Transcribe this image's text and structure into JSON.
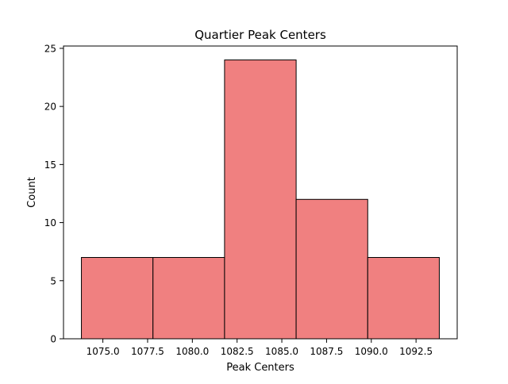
{
  "chart_data": {
    "type": "bar",
    "title": "Quartier Peak Centers",
    "xlabel": "Peak Centers",
    "ylabel": "Count",
    "bins": [
      {
        "x0": 1073.8,
        "x1": 1077.8,
        "count": 7
      },
      {
        "x0": 1077.8,
        "x1": 1081.8,
        "count": 7
      },
      {
        "x0": 1081.8,
        "x1": 1085.8,
        "count": 24
      },
      {
        "x0": 1085.8,
        "x1": 1089.8,
        "count": 12
      },
      {
        "x0": 1089.8,
        "x1": 1093.8,
        "count": 7
      }
    ],
    "xlim": [
      1072.8,
      1094.8
    ],
    "ylim": [
      0,
      25.2
    ],
    "xticks": [
      1075.0,
      1077.5,
      1080.0,
      1082.5,
      1085.0,
      1087.5,
      1090.0,
      1092.5
    ],
    "xtick_labels": [
      "1075.0",
      "1077.5",
      "1080.0",
      "1082.5",
      "1085.0",
      "1087.5",
      "1090.0",
      "1092.5"
    ],
    "yticks": [
      0,
      5,
      10,
      15,
      20,
      25
    ],
    "ytick_labels": [
      "0",
      "5",
      "10",
      "15",
      "20",
      "25"
    ],
    "grid": false,
    "legend": "none",
    "bar_color": "#f08080",
    "edge_color": "#000000"
  }
}
